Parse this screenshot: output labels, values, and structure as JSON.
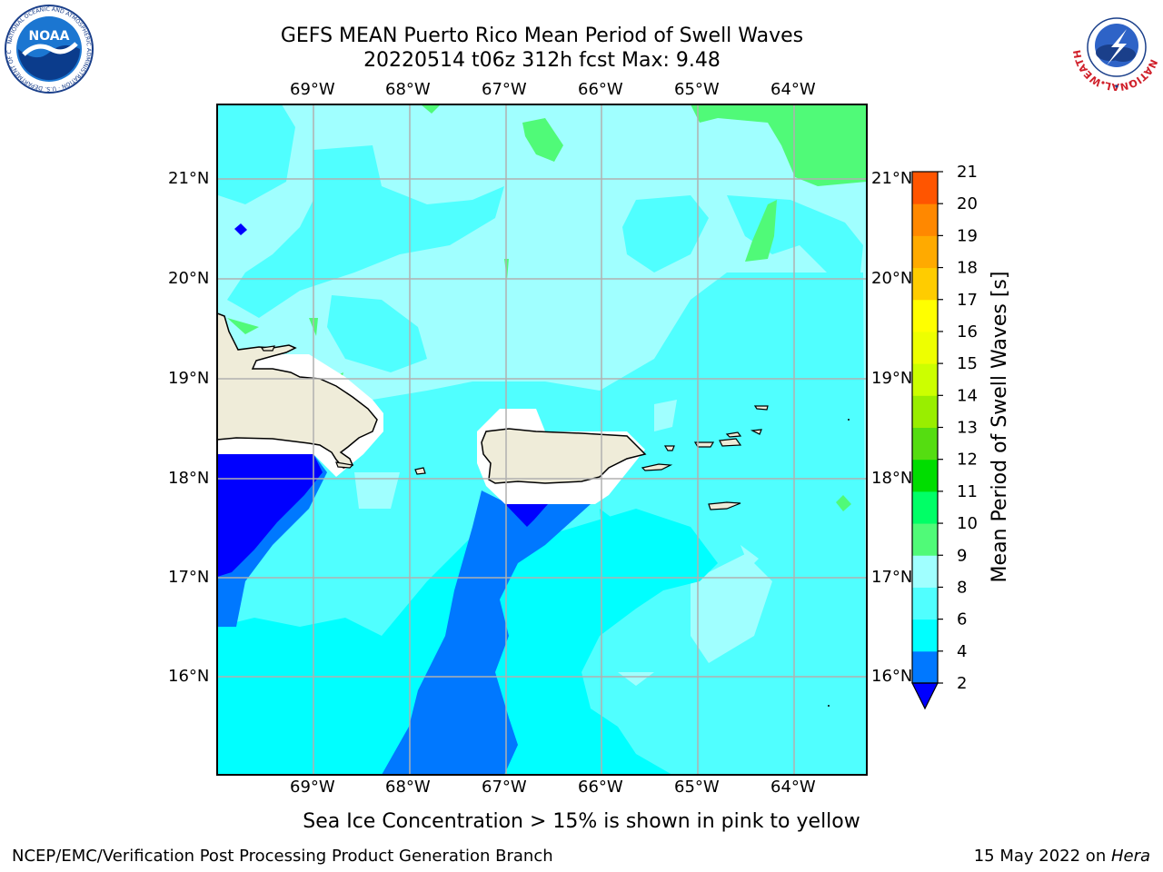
{
  "header": {
    "title_line1": "GEFS MEAN Puerto Rico Mean Period of Swell Waves",
    "title_line2": "20220514 t06z 312h fcst   Max: 9.48"
  },
  "logos": {
    "left": "noaa-logo",
    "left_text": "NOAA",
    "left_ring_text": "NATIONAL OCEANIC AND ATMOSPHERIC ADMINISTRATION · U.S. DEPARTMENT OF COMMERCE",
    "right": "national-weather-service-logo",
    "right_ring_text": "NATIONAL WEATHER SERVICE"
  },
  "map": {
    "lon_labels": [
      "69°W",
      "68°W",
      "67°W",
      "66°W",
      "65°W",
      "64°W"
    ],
    "lat_labels": [
      "21°N",
      "20°N",
      "19°N",
      "18°N",
      "17°N",
      "16°N"
    ],
    "extent": {
      "lon_min": -70.0,
      "lon_max": -63.25,
      "lat_min": 15.0,
      "lat_max": 21.75
    },
    "land_color": "#efecd9",
    "grid": true
  },
  "colorbar": {
    "label": "Mean Period of Swell Waves [s]",
    "ticks": [
      "2",
      "4",
      "6",
      "8",
      "9",
      "10",
      "11",
      "12",
      "13",
      "14",
      "15",
      "16",
      "17",
      "18",
      "19",
      "20",
      "21"
    ],
    "colors": [
      "#0078ff",
      "#00ffff",
      "#50ffff",
      "#a0ffff",
      "#50fa78",
      "#00ff66",
      "#00dd00",
      "#55dd11",
      "#99ee00",
      "#ccff00",
      "#eeff00",
      "#ffff00",
      "#ffcc00",
      "#ffaa00",
      "#ff8800",
      "#ff5500",
      "#ff2200",
      "#ff0000"
    ],
    "under_color": "#0000ff"
  },
  "footer": {
    "note": "Sea Ice Concentration > 15% is shown in pink to yellow",
    "credit": "NCEP/EMC/Verification Post Processing Product Generation Branch",
    "date": "15 May 2022 on ",
    "machine": "Hera"
  }
}
